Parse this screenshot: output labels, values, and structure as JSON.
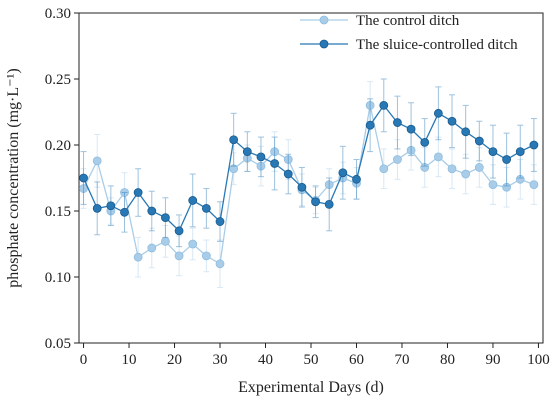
{
  "chart_data": {
    "type": "line",
    "xlabel": "Experimental Days (d)",
    "ylabel": "phosphate concentration (mg·L⁻¹)",
    "xlim": [
      -1,
      101
    ],
    "ylim": [
      0.05,
      0.3
    ],
    "xticks": [
      0,
      10,
      20,
      30,
      40,
      50,
      60,
      70,
      80,
      90,
      100
    ],
    "yticks": [
      0.05,
      0.1,
      0.15,
      0.2,
      0.25,
      0.3
    ],
    "ytick_labels": [
      "0.05",
      "0.10",
      "0.15",
      "0.20",
      "0.25",
      "0.30"
    ],
    "grid": false,
    "legend_position": "top-right",
    "series": [
      {
        "name": "The control ditch",
        "color": "#a9cde8",
        "x": [
          0,
          3,
          6,
          9,
          12,
          15,
          18,
          21,
          24,
          27,
          30,
          33,
          36,
          39,
          42,
          45,
          48,
          51,
          54,
          57,
          60,
          63,
          66,
          69,
          72,
          75,
          78,
          81,
          84,
          87,
          90,
          93,
          96,
          99
        ],
        "y": [
          0.167,
          0.188,
          0.15,
          0.164,
          0.115,
          0.122,
          0.127,
          0.116,
          0.125,
          0.116,
          0.11,
          0.182,
          0.19,
          0.184,
          0.195,
          0.189,
          0.166,
          0.158,
          0.17,
          0.175,
          0.171,
          0.23,
          0.182,
          0.189,
          0.196,
          0.183,
          0.191,
          0.182,
          0.178,
          0.183,
          0.17,
          0.168,
          0.174,
          0.17
        ],
        "err": [
          0.015,
          0.02,
          0.01,
          0.015,
          0.015,
          0.015,
          0.012,
          0.015,
          0.012,
          0.012,
          0.018,
          0.012,
          0.01,
          0.015,
          0.015,
          0.015,
          0.012,
          0.01,
          0.012,
          0.012,
          0.012,
          0.018,
          0.015,
          0.015,
          0.015,
          0.015,
          0.015,
          0.015,
          0.015,
          0.015,
          0.015,
          0.015,
          0.015,
          0.015
        ]
      },
      {
        "name": "The sluice-controlled ditch",
        "color": "#2878b5",
        "x": [
          0,
          3,
          6,
          9,
          12,
          15,
          18,
          21,
          24,
          27,
          30,
          33,
          36,
          39,
          42,
          45,
          48,
          51,
          54,
          57,
          60,
          63,
          66,
          69,
          72,
          75,
          78,
          81,
          84,
          87,
          90,
          93,
          96,
          99
        ],
        "y": [
          0.175,
          0.152,
          0.154,
          0.149,
          0.164,
          0.15,
          0.145,
          0.135,
          0.158,
          0.152,
          0.142,
          0.204,
          0.195,
          0.191,
          0.186,
          0.178,
          0.168,
          0.157,
          0.155,
          0.179,
          0.174,
          0.215,
          0.23,
          0.217,
          0.212,
          0.202,
          0.224,
          0.218,
          0.21,
          0.203,
          0.195,
          0.189,
          0.195,
          0.2
        ],
        "err": [
          0.02,
          0.02,
          0.015,
          0.015,
          0.018,
          0.015,
          0.015,
          0.012,
          0.02,
          0.015,
          0.015,
          0.02,
          0.015,
          0.015,
          0.02,
          0.015,
          0.015,
          0.012,
          0.02,
          0.02,
          0.015,
          0.02,
          0.02,
          0.02,
          0.02,
          0.018,
          0.02,
          0.02,
          0.02,
          0.015,
          0.02,
          0.02,
          0.02,
          0.02
        ]
      }
    ]
  }
}
